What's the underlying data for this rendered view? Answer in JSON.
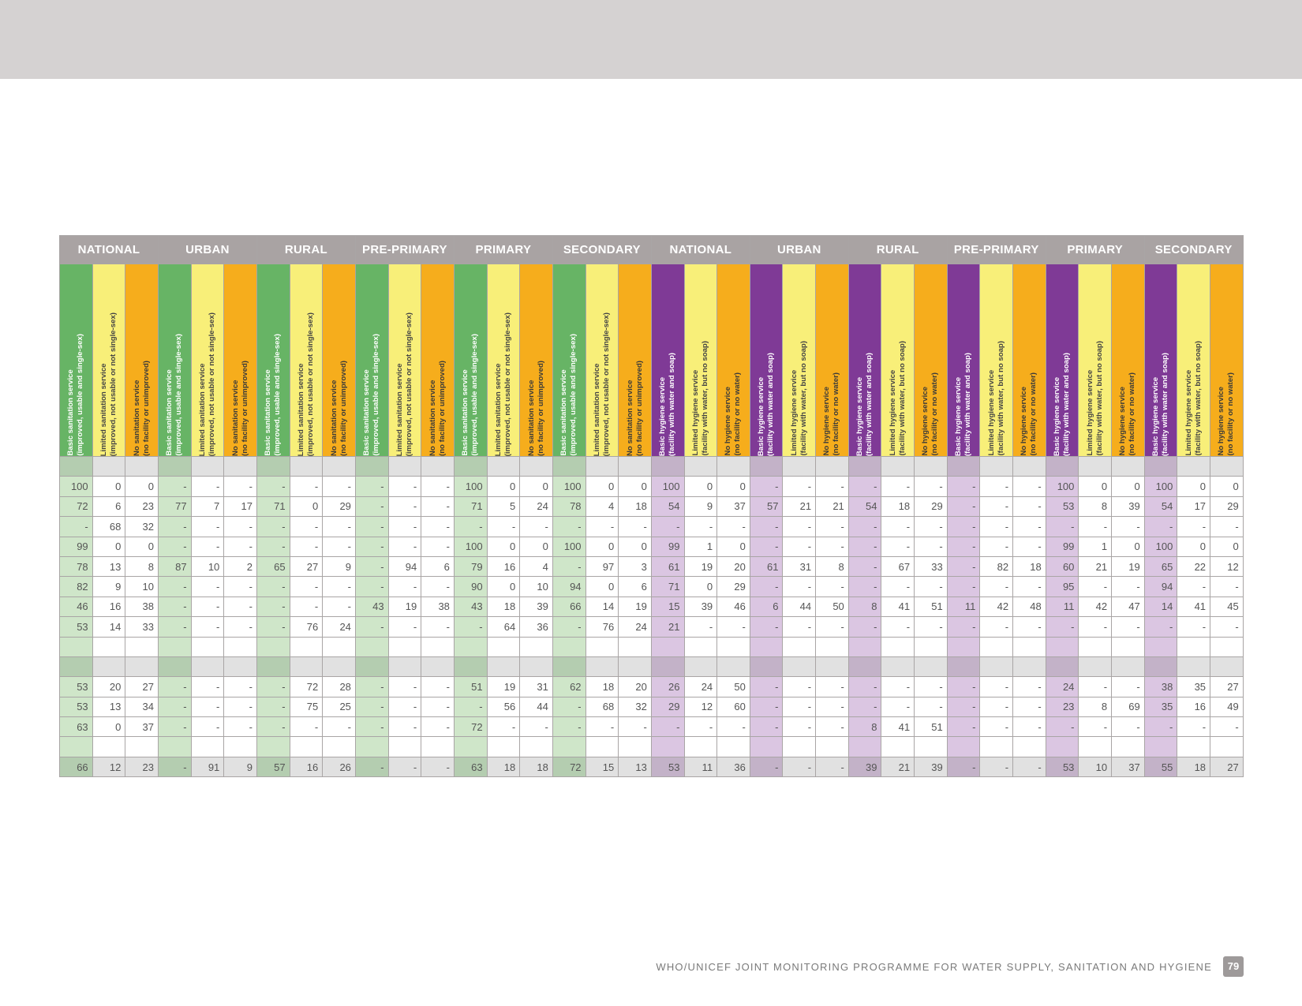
{
  "colors": {
    "green": "#67b465",
    "yellow": "#f8ef79",
    "orange": "#f6ad1c",
    "purple": "#7f3a96",
    "group_header": "#a9a3a3"
  },
  "groups": [
    "NATIONAL",
    "URBAN",
    "RURAL",
    "PRE-PRIMARY",
    "PRIMARY",
    "SECONDARY",
    "NATIONAL",
    "URBAN",
    "RURAL",
    "PRE-PRIMARY",
    "PRIMARY",
    "SECONDARY"
  ],
  "sanitation_columns": [
    {
      "title": "Basic sanitation service",
      "subtitle": "(improved, usable and single-sex)",
      "color": "green"
    },
    {
      "title": "Limited sanitation service",
      "subtitle": "(improved, not usable or not single-sex)",
      "color": "yellow"
    },
    {
      "title": "No sanitation service",
      "subtitle": "(no facility or unimproved)",
      "color": "orange"
    }
  ],
  "hygiene_columns": [
    {
      "title": "Basic hygiene service",
      "subtitle": "(facility with water and soap)",
      "color": "purple"
    },
    {
      "title": "Limited hygiene service",
      "subtitle": "(facility with water, but no soap)",
      "color": "yellow"
    },
    {
      "title": "No hygiene service",
      "subtitle": "(no facility or no water)",
      "color": "orange"
    }
  ],
  "rows": [
    {
      "shade": true,
      "cells": [
        "",
        "",
        "",
        "",
        "",
        "",
        "",
        "",
        "",
        "",
        "",
        "",
        "",
        "",
        "",
        "",
        "",
        "",
        "",
        "",
        "",
        "",
        "",
        "",
        "",
        "",
        "",
        "",
        "",
        "",
        "",
        "",
        "",
        "",
        "",
        ""
      ]
    },
    {
      "shade": false,
      "cells": [
        "100",
        "0",
        "0",
        "-",
        "-",
        "-",
        "-",
        "-",
        "-",
        "-",
        "-",
        "-",
        "100",
        "0",
        "0",
        "100",
        "0",
        "0",
        "100",
        "0",
        "0",
        "-",
        "-",
        "-",
        "-",
        "-",
        "-",
        "-",
        "-",
        "-",
        "100",
        "0",
        "0",
        "100",
        "0",
        "0"
      ]
    },
    {
      "shade": false,
      "cells": [
        "72",
        "6",
        "23",
        "77",
        "7",
        "17",
        "71",
        "0",
        "29",
        "-",
        "-",
        "-",
        "71",
        "5",
        "24",
        "78",
        "4",
        "18",
        "54",
        "9",
        "37",
        "57",
        "21",
        "21",
        "54",
        "18",
        "29",
        "-",
        "-",
        "-",
        "53",
        "8",
        "39",
        "54",
        "17",
        "29"
      ]
    },
    {
      "shade": false,
      "cells": [
        "-",
        "68",
        "32",
        "-",
        "-",
        "-",
        "-",
        "-",
        "-",
        "-",
        "-",
        "-",
        "-",
        "-",
        "-",
        "-",
        "-",
        "-",
        "-",
        "-",
        "-",
        "-",
        "-",
        "-",
        "-",
        "-",
        "-",
        "-",
        "-",
        "-",
        "-",
        "-",
        "-",
        "-",
        "-",
        "-"
      ]
    },
    {
      "shade": false,
      "cells": [
        "99",
        "0",
        "0",
        "-",
        "-",
        "-",
        "-",
        "-",
        "-",
        "-",
        "-",
        "-",
        "100",
        "0",
        "0",
        "100",
        "0",
        "0",
        "99",
        "1",
        "0",
        "-",
        "-",
        "-",
        "-",
        "-",
        "-",
        "-",
        "-",
        "-",
        "99",
        "1",
        "0",
        "100",
        "0",
        "0"
      ]
    },
    {
      "shade": false,
      "cells": [
        "78",
        "13",
        "8",
        "87",
        "10",
        "2",
        "65",
        "27",
        "9",
        "-",
        "94",
        "6",
        "79",
        "16",
        "4",
        "-",
        "97",
        "3",
        "61",
        "19",
        "20",
        "61",
        "31",
        "8",
        "-",
        "67",
        "33",
        "-",
        "82",
        "18",
        "60",
        "21",
        "19",
        "65",
        "22",
        "12"
      ]
    },
    {
      "shade": false,
      "cells": [
        "82",
        "9",
        "10",
        "-",
        "-",
        "-",
        "-",
        "-",
        "-",
        "-",
        "-",
        "-",
        "90",
        "0",
        "10",
        "94",
        "0",
        "6",
        "71",
        "0",
        "29",
        "-",
        "-",
        "-",
        "-",
        "-",
        "-",
        "-",
        "-",
        "-",
        "95",
        "-",
        "-",
        "94",
        "-",
        "-"
      ]
    },
    {
      "shade": false,
      "cells": [
        "46",
        "16",
        "38",
        "-",
        "-",
        "-",
        "-",
        "-",
        "-",
        "43",
        "19",
        "38",
        "43",
        "18",
        "39",
        "66",
        "14",
        "19",
        "15",
        "39",
        "46",
        "6",
        "44",
        "50",
        "8",
        "41",
        "51",
        "11",
        "42",
        "48",
        "11",
        "42",
        "47",
        "14",
        "41",
        "45"
      ]
    },
    {
      "shade": false,
      "cells": [
        "53",
        "14",
        "33",
        "-",
        "-",
        "-",
        "-",
        "76",
        "24",
        "-",
        "-",
        "-",
        "-",
        "64",
        "36",
        "-",
        "76",
        "24",
        "21",
        "-",
        "-",
        "-",
        "-",
        "-",
        "-",
        "-",
        "-",
        "-",
        "-",
        "-",
        "-",
        "-",
        "-",
        "-",
        "-",
        "-"
      ]
    },
    {
      "shade": false,
      "cells": [
        "",
        "",
        "",
        "",
        "",
        "",
        "",
        "",
        "",
        "",
        "",
        "",
        "",
        "",
        "",
        "",
        "",
        "",
        "",
        "",
        "",
        "",
        "",
        "",
        "",
        "",
        "",
        "",
        "",
        "",
        "",
        "",
        "",
        "",
        "",
        ""
      ]
    },
    {
      "shade": true,
      "cells": [
        "",
        "",
        "",
        "",
        "",
        "",
        "",
        "",
        "",
        "",
        "",
        "",
        "",
        "",
        "",
        "",
        "",
        "",
        "",
        "",
        "",
        "",
        "",
        "",
        "",
        "",
        "",
        "",
        "",
        "",
        "",
        "",
        "",
        "",
        "",
        ""
      ]
    },
    {
      "shade": false,
      "cells": [
        "53",
        "20",
        "27",
        "-",
        "-",
        "-",
        "-",
        "72",
        "28",
        "-",
        "-",
        "-",
        "51",
        "19",
        "31",
        "62",
        "18",
        "20",
        "26",
        "24",
        "50",
        "-",
        "-",
        "-",
        "-",
        "-",
        "-",
        "-",
        "-",
        "-",
        "24",
        "-",
        "-",
        "38",
        "35",
        "27"
      ]
    },
    {
      "shade": false,
      "cells": [
        "53",
        "13",
        "34",
        "-",
        "-",
        "-",
        "-",
        "75",
        "25",
        "-",
        "-",
        "-",
        "-",
        "56",
        "44",
        "-",
        "68",
        "32",
        "29",
        "12",
        "60",
        "-",
        "-",
        "-",
        "-",
        "-",
        "-",
        "-",
        "-",
        "-",
        "23",
        "8",
        "69",
        "35",
        "16",
        "49"
      ]
    },
    {
      "shade": false,
      "cells": [
        "63",
        "0",
        "37",
        "-",
        "-",
        "-",
        "-",
        "-",
        "-",
        "-",
        "-",
        "-",
        "72",
        "-",
        "-",
        "-",
        "-",
        "-",
        "-",
        "-",
        "-",
        "-",
        "-",
        "-",
        "8",
        "41",
        "51",
        "-",
        "-",
        "-",
        "-",
        "-",
        "-",
        "-",
        "-",
        "-"
      ]
    },
    {
      "shade": false,
      "cells": [
        "",
        "",
        "",
        "",
        "",
        "",
        "",
        "",
        "",
        "",
        "",
        "",
        "",
        "",
        "",
        "",
        "",
        "",
        "",
        "",
        "",
        "",
        "",
        "",
        "",
        "",
        "",
        "",
        "",
        "",
        "",
        "",
        "",
        "",
        "",
        ""
      ]
    },
    {
      "shade": true,
      "cells": [
        "66",
        "12",
        "23",
        "-",
        "91",
        "9",
        "57",
        "16",
        "26",
        "-",
        "-",
        "-",
        "63",
        "18",
        "18",
        "72",
        "15",
        "13",
        "53",
        "11",
        "36",
        "-",
        "-",
        "-",
        "39",
        "21",
        "39",
        "-",
        "-",
        "-",
        "53",
        "10",
        "37",
        "55",
        "18",
        "27"
      ]
    }
  ],
  "footer": {
    "title": "WHO/UNICEF JOINT MONITORING PROGRAMME FOR WATER SUPPLY, SANITATION AND HYGIENE",
    "page_number": "79"
  }
}
